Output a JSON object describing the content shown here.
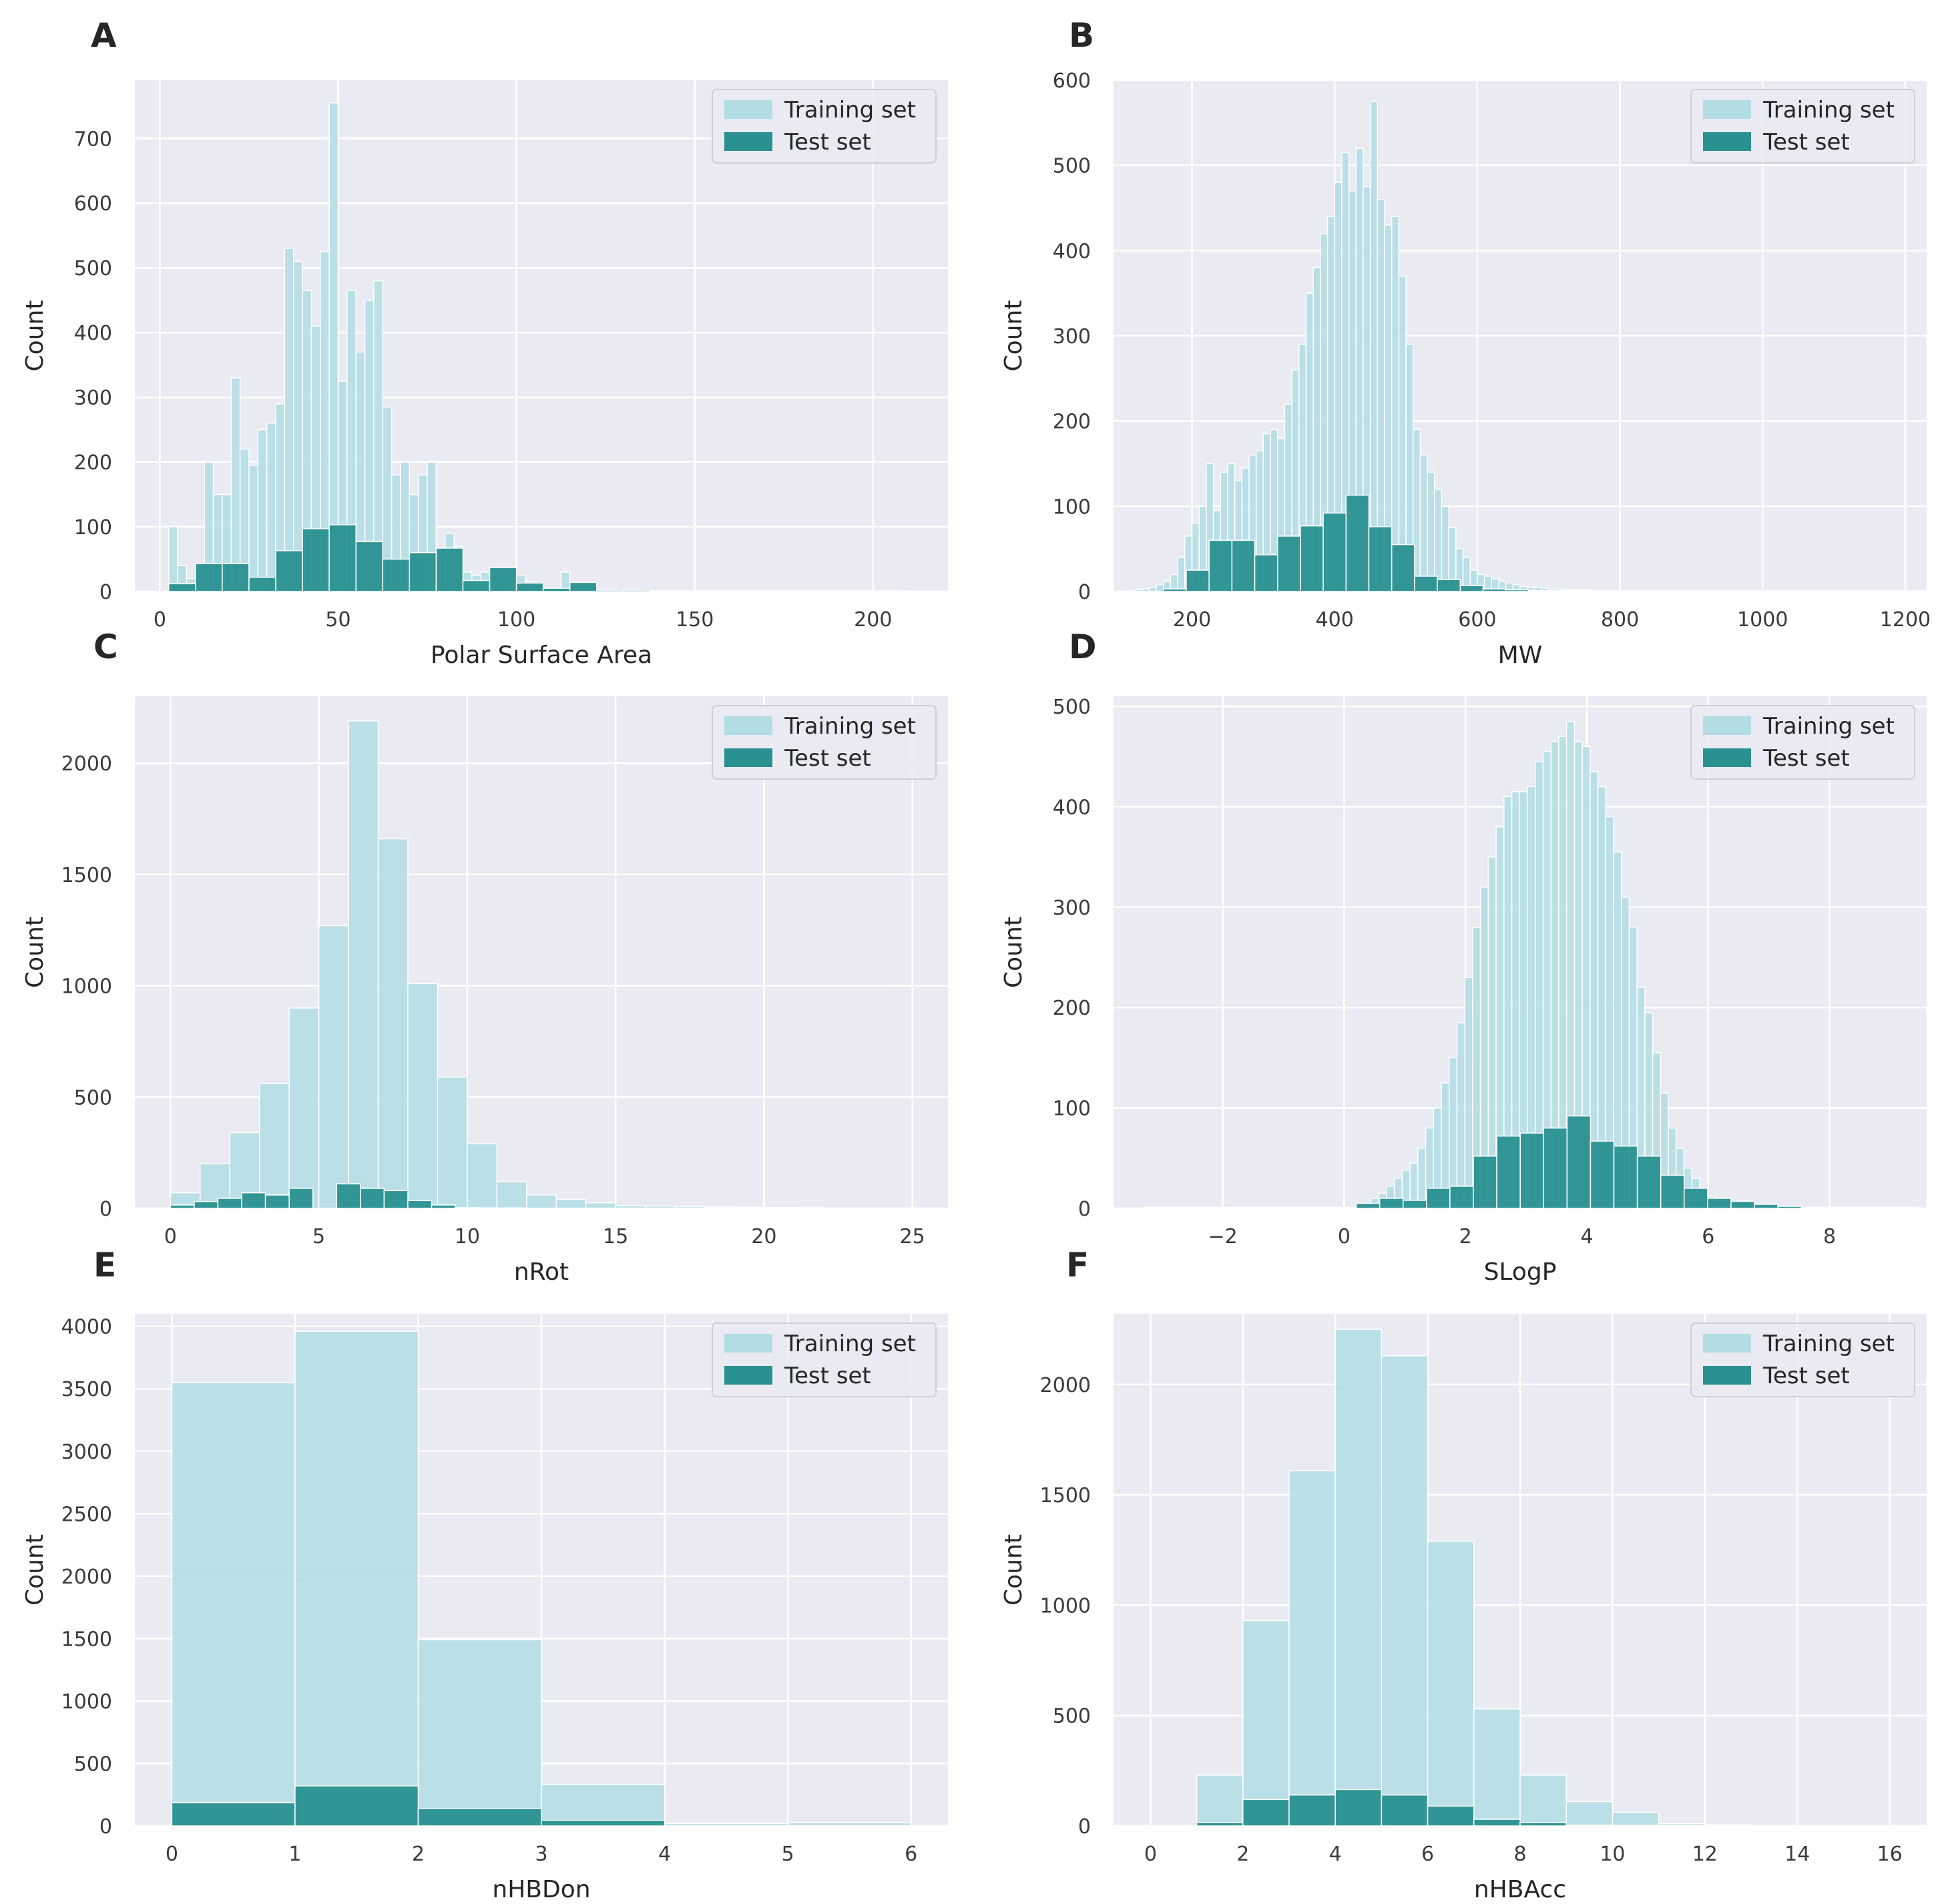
{
  "colors": {
    "background": "#eaeaf2",
    "grid": "#ffffff",
    "training": "#b3dde5",
    "test": "#2a9090",
    "bar_edge": "#ffffff"
  },
  "chart_data": [
    {
      "panel": "A",
      "type": "bar",
      "xlabel": "Polar Surface Area",
      "ylabel": "Count",
      "xlim": [
        -7,
        221
      ],
      "ylim": [
        0,
        790
      ],
      "xticks": [
        0,
        50,
        100,
        150,
        200
      ],
      "yticks": [
        0,
        100,
        200,
        300,
        400,
        500,
        600,
        700
      ],
      "legend": "top-right",
      "legend_entries": [
        "Training set",
        "Test set"
      ],
      "series": [
        {
          "name": "Training set",
          "bin_start": 2.5,
          "bin_width": 2.5,
          "values": [
            100,
            40,
            20,
            40,
            200,
            150,
            150,
            330,
            220,
            195,
            250,
            260,
            290,
            530,
            510,
            465,
            410,
            525,
            755,
            325,
            465,
            370,
            450,
            480,
            285,
            180,
            200,
            150,
            180,
            200,
            60,
            90,
            70,
            30,
            25,
            30,
            25,
            20,
            20,
            25,
            15,
            10,
            5,
            5,
            30,
            5,
            3,
            3,
            2,
            2,
            2,
            2,
            2,
            1,
            1,
            1,
            1,
            1,
            1,
            1,
            1,
            1,
            1,
            1,
            1,
            1,
            1,
            1,
            1,
            1,
            1,
            1,
            1,
            1,
            1,
            1,
            1,
            1,
            1,
            1,
            1,
            1,
            1
          ]
        },
        {
          "name": "Test set",
          "bin_start": 2.5,
          "bin_width": 7.5,
          "values": [
            12,
            43,
            43,
            22,
            63,
            97,
            103,
            77,
            50,
            60,
            67,
            17,
            37,
            13,
            5,
            14,
            2,
            2,
            1,
            1,
            1,
            1,
            1,
            1,
            1,
            1,
            1
          ]
        }
      ]
    },
    {
      "panel": "B",
      "type": "bar",
      "xlabel": "MW",
      "ylabel": "Count",
      "xlim": [
        90,
        1230
      ],
      "ylim": [
        0,
        600
      ],
      "xticks": [
        200,
        400,
        600,
        800,
        1000,
        1200
      ],
      "yticks": [
        0,
        100,
        200,
        300,
        400,
        500,
        600
      ],
      "legend": "top-right",
      "legend_entries": [
        "Training set",
        "Test set"
      ],
      "series": [
        {
          "name": "Training set",
          "bin_start": 120,
          "bin_width": 10,
          "values": [
            2,
            3,
            5,
            8,
            12,
            20,
            40,
            65,
            80,
            100,
            150,
            95,
            140,
            150,
            130,
            145,
            160,
            165,
            185,
            190,
            180,
            220,
            260,
            290,
            350,
            380,
            420,
            440,
            480,
            515,
            470,
            520,
            475,
            575,
            460,
            430,
            440,
            370,
            290,
            190,
            160,
            140,
            120,
            100,
            75,
            50,
            40,
            25,
            20,
            18,
            15,
            12,
            10,
            8,
            6,
            5,
            5,
            4,
            3,
            3,
            2,
            2,
            2,
            2,
            1,
            1,
            1,
            1,
            1,
            1,
            1,
            1,
            1,
            1,
            1,
            1,
            1,
            1,
            1,
            1,
            1,
            1,
            1,
            1,
            1,
            1,
            1,
            1,
            1,
            1,
            1,
            1,
            1,
            1,
            1,
            1,
            1,
            1,
            1,
            1,
            1,
            1,
            1,
            1,
            1,
            1,
            1,
            1,
            1,
            1,
            1
          ]
        },
        {
          "name": "Test set",
          "bin_start": 160,
          "bin_width": 32,
          "values": [
            3,
            25,
            60,
            60,
            43,
            65,
            77,
            92,
            113,
            76,
            55,
            18,
            14,
            7,
            3,
            2,
            1,
            1,
            1,
            1,
            1,
            1,
            1,
            1,
            1,
            1,
            1,
            1,
            1,
            1,
            1,
            1
          ]
        }
      ]
    },
    {
      "panel": "C",
      "type": "bar",
      "xlabel": "nRot",
      "ylabel": "Count",
      "xlim": [
        -1.2,
        26.2
      ],
      "ylim": [
        0,
        2300
      ],
      "xticks": [
        0,
        5,
        10,
        15,
        20,
        25
      ],
      "yticks": [
        0,
        500,
        1000,
        1500,
        2000
      ],
      "legend": "top-right",
      "legend_entries": [
        "Training set",
        "Test set"
      ],
      "series": [
        {
          "name": "Training set",
          "bin_start": 0,
          "bin_width": 1,
          "values": [
            70,
            200,
            340,
            560,
            900,
            1270,
            2190,
            1660,
            1010,
            590,
            290,
            120,
            60,
            40,
            25,
            12,
            10,
            8,
            6,
            5,
            4,
            3,
            2,
            2,
            2
          ]
        },
        {
          "name": "Test set",
          "bin_start": 0,
          "bin_width": 0.8,
          "values": [
            15,
            30,
            45,
            70,
            60,
            90,
            0,
            110,
            90,
            80,
            35,
            15,
            3,
            2,
            2,
            1,
            1,
            1,
            1,
            1,
            1,
            1,
            1,
            1,
            1,
            1,
            1,
            1,
            1,
            1,
            1
          ]
        }
      ]
    },
    {
      "panel": "D",
      "type": "bar",
      "xlabel": "SLogP",
      "ylabel": "Count",
      "xlim": [
        -3.8,
        9.6
      ],
      "ylim": [
        0,
        510
      ],
      "xticks": [
        -2,
        0,
        2,
        4,
        6,
        8
      ],
      "tick_labels_x": [
        "−2",
        "0",
        "2",
        "4",
        "6",
        "8"
      ],
      "yticks": [
        0,
        100,
        200,
        300,
        400,
        500
      ],
      "legend": "top-right",
      "legend_entries": [
        "Training set",
        "Test set"
      ],
      "series": [
        {
          "name": "Training set",
          "bin_start": -3.3,
          "bin_width": 0.129,
          "values": [
            1,
            1,
            1,
            1,
            1,
            1,
            1,
            1,
            1,
            1,
            1,
            1,
            1,
            1,
            1,
            1,
            1,
            1,
            1,
            1,
            1,
            1,
            1,
            1,
            1,
            1,
            1,
            2,
            5,
            10,
            15,
            22,
            30,
            38,
            45,
            60,
            80,
            100,
            125,
            150,
            185,
            230,
            280,
            320,
            350,
            380,
            410,
            415,
            415,
            420,
            445,
            455,
            465,
            470,
            485,
            465,
            460,
            435,
            420,
            390,
            355,
            310,
            280,
            220,
            195,
            155,
            115,
            80,
            60,
            40,
            30,
            20,
            12,
            8,
            10,
            5,
            8,
            5,
            3,
            4,
            3,
            2,
            2,
            1,
            1,
            1,
            1,
            1,
            1,
            1,
            1,
            1,
            1,
            1,
            1
          ]
        },
        {
          "name": "Test set",
          "bin_start": 0.2,
          "bin_width": 0.386,
          "values": [
            5,
            10,
            8,
            20,
            22,
            52,
            72,
            75,
            80,
            92,
            67,
            62,
            52,
            33,
            20,
            10,
            7,
            4,
            2,
            1,
            1,
            1,
            1,
            1
          ]
        }
      ]
    },
    {
      "panel": "E",
      "type": "bar",
      "xlabel": "nHBDon",
      "ylabel": "Count",
      "xlim": [
        -0.3,
        6.3
      ],
      "ylim": [
        0,
        4100
      ],
      "xticks": [
        0,
        1,
        2,
        3,
        4,
        5,
        6
      ],
      "yticks": [
        0,
        500,
        1000,
        1500,
        2000,
        2500,
        3000,
        3500,
        4000
      ],
      "legend": "top-right",
      "legend_entries": [
        "Training set",
        "Test set"
      ],
      "series": [
        {
          "name": "Training set",
          "bin_start": 0,
          "bin_width": 1,
          "values": [
            3550,
            3960,
            1490,
            330,
            20,
            25
          ]
        },
        {
          "name": "Test set",
          "bin_start": 0,
          "bin_width": 1,
          "values": [
            185,
            320,
            140,
            45,
            2,
            2
          ]
        }
      ]
    },
    {
      "panel": "F",
      "type": "bar",
      "xlabel": "nHBAcc",
      "ylabel": "Count",
      "xlim": [
        -0.8,
        16.8
      ],
      "ylim": [
        0,
        2320
      ],
      "xticks": [
        0,
        2,
        4,
        6,
        8,
        10,
        12,
        14,
        16
      ],
      "yticks": [
        0,
        500,
        1000,
        1500,
        2000
      ],
      "legend": "top-right",
      "legend_entries": [
        "Training set",
        "Test set"
      ],
      "series": [
        {
          "name": "Training set",
          "bin_start": 1,
          "bin_width": 1,
          "values": [
            230,
            930,
            1610,
            2250,
            2130,
            1290,
            530,
            230,
            110,
            60,
            10,
            5,
            2,
            2,
            2
          ]
        },
        {
          "name": "Test set",
          "bin_start": 1,
          "bin_width": 1,
          "values": [
            15,
            120,
            140,
            165,
            140,
            90,
            30,
            15,
            3,
            2,
            1,
            1,
            1,
            1,
            1
          ]
        }
      ]
    }
  ]
}
